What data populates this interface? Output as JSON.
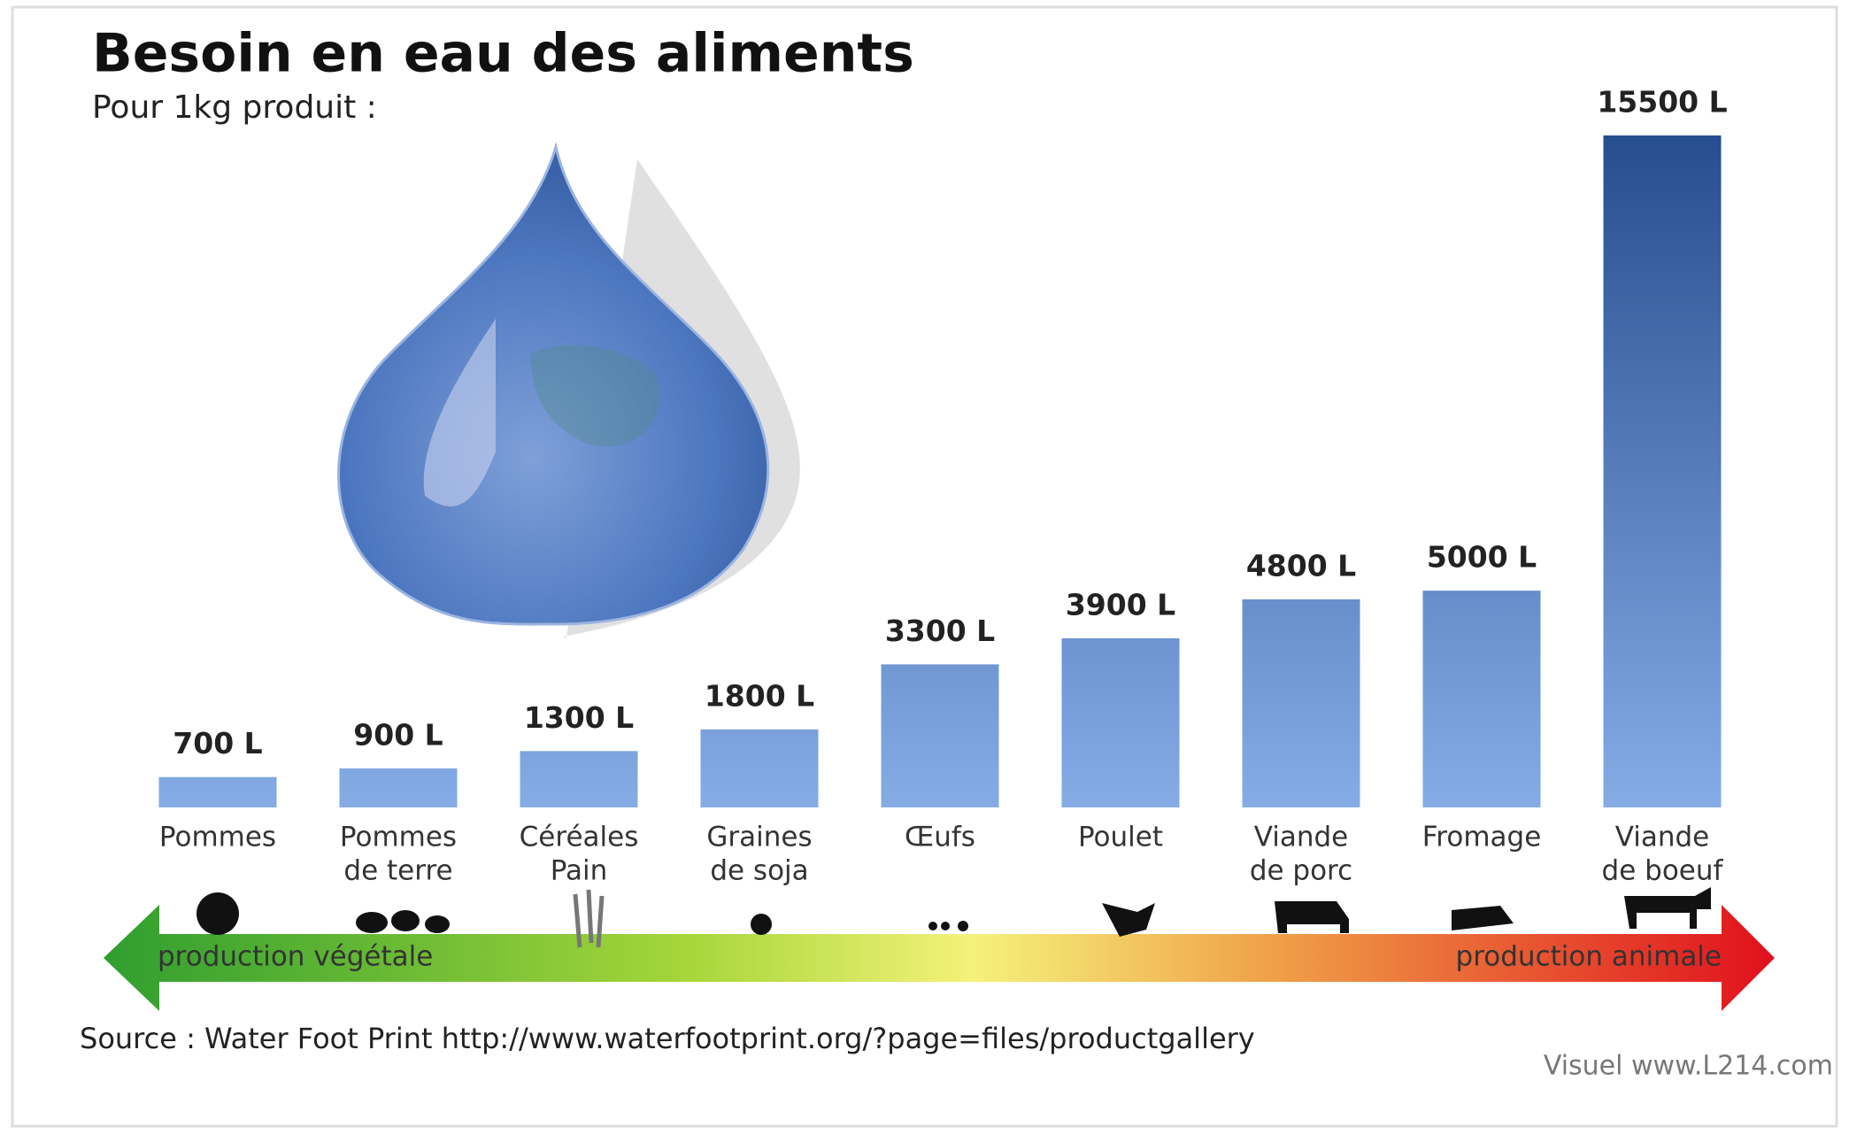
{
  "chart_data": {
    "type": "bar",
    "title": "Besoin en eau des aliments",
    "subtitle": "Pour 1kg produit :",
    "categories": [
      [
        "Pommes"
      ],
      [
        "Pommes",
        "de terre"
      ],
      [
        "Céréales",
        "Pain"
      ],
      [
        "Graines",
        "de soja"
      ],
      [
        "Œufs"
      ],
      [
        "Poulet"
      ],
      [
        "Viande",
        "de porc"
      ],
      [
        "Fromage"
      ],
      [
        "Viande",
        "de boeuf"
      ]
    ],
    "values": [
      700,
      900,
      1300,
      1800,
      3300,
      3900,
      4800,
      5000,
      15500
    ],
    "value_labels": [
      "700 L",
      "900 L",
      "1300 L",
      "1800 L",
      "3300 L",
      "3900 L",
      "4800 L",
      "5000 L",
      "15500 L"
    ],
    "color": "#86ace6",
    "arrow_left_label": "production végétale",
    "arrow_right_label": "production animale",
    "source": "Source : Water Foot Print http://www.waterfootprint.org/?page=files/productgallery",
    "credit": "Visuel www.L214.com"
  }
}
